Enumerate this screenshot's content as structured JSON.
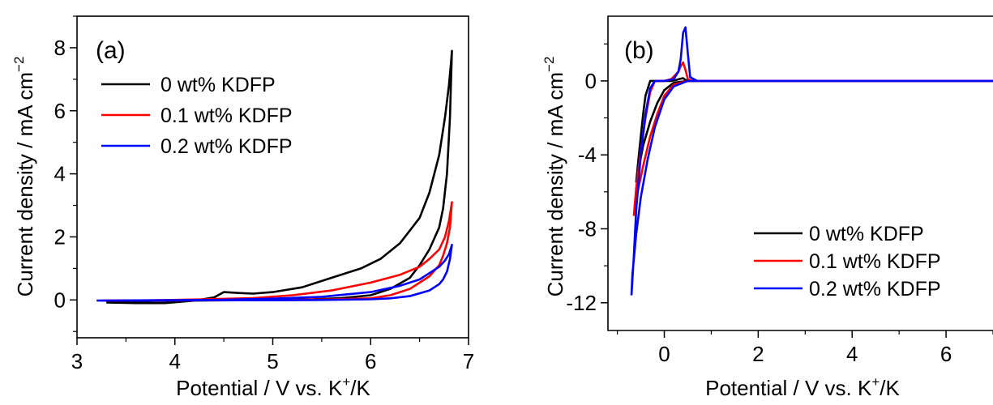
{
  "chart_data": [
    {
      "type": "line",
      "panel_label": "(a)",
      "xlabel": "Potential / V vs. K",
      "xlabel_sup": "+",
      "xlabel_tail": "/K",
      "ylabel": "Current density / mA cm",
      "ylabel_sup": "−2",
      "xlim": [
        3,
        7
      ],
      "ylim": [
        -1.2,
        9.0
      ],
      "xticks": [
        3,
        4,
        5,
        6,
        7
      ],
      "xtick_labels": [
        "3",
        "4",
        "5",
        "6",
        "7"
      ],
      "yticks": [
        0,
        2,
        4,
        6,
        8
      ],
      "ytick_labels": [
        "0",
        "2",
        "4",
        "6",
        "8"
      ],
      "legend_position": "upper-left",
      "series": [
        {
          "name": "0 wt% KDFP",
          "color": "#000000",
          "x": [
            3.3,
            3.6,
            3.9,
            4.2,
            4.4,
            4.5,
            4.65,
            4.8,
            5.0,
            5.3,
            5.6,
            5.9,
            6.1,
            6.3,
            6.5,
            6.6,
            6.7,
            6.76,
            6.8,
            6.82,
            6.83,
            6.81,
            6.78,
            6.74,
            6.7,
            6.6,
            6.5,
            6.4,
            6.2,
            6.0,
            5.7,
            5.4,
            5.0,
            4.6,
            4.2,
            3.8,
            3.4
          ],
          "y": [
            -0.08,
            -0.1,
            -0.1,
            -0.02,
            0.08,
            0.25,
            0.22,
            0.2,
            0.25,
            0.4,
            0.7,
            1.0,
            1.3,
            1.8,
            2.6,
            3.4,
            4.6,
            5.8,
            6.8,
            7.5,
            7.9,
            5.8,
            4.0,
            2.9,
            2.3,
            1.6,
            1.1,
            0.7,
            0.35,
            0.15,
            0.06,
            0.02,
            0.0,
            -0.01,
            -0.02,
            -0.03,
            -0.05
          ]
        },
        {
          "name": "0.1 wt% KDFP",
          "color": "#ff0000",
          "x": [
            3.25,
            3.8,
            4.3,
            4.8,
            5.2,
            5.6,
            6.0,
            6.3,
            6.5,
            6.6,
            6.7,
            6.76,
            6.8,
            6.82,
            6.83,
            6.81,
            6.78,
            6.74,
            6.7,
            6.6,
            6.4,
            6.2,
            6.0,
            5.6,
            5.2,
            4.8,
            4.3,
            3.8,
            3.25
          ],
          "y": [
            -0.02,
            -0.01,
            0.02,
            0.06,
            0.15,
            0.3,
            0.55,
            0.8,
            1.05,
            1.3,
            1.6,
            2.0,
            2.5,
            2.9,
            3.1,
            2.3,
            1.8,
            1.4,
            1.1,
            0.75,
            0.35,
            0.15,
            0.05,
            0.02,
            0.0,
            -0.01,
            -0.01,
            -0.02,
            -0.02
          ]
        },
        {
          "name": "0.2 wt% KDFP",
          "color": "#0000ff",
          "x": [
            3.2,
            3.8,
            4.4,
            5.0,
            5.5,
            6.0,
            6.3,
            6.5,
            6.6,
            6.7,
            6.76,
            6.8,
            6.82,
            6.83,
            6.81,
            6.78,
            6.74,
            6.7,
            6.6,
            6.4,
            6.2,
            6.0,
            5.5,
            5.0,
            4.4,
            3.8,
            3.2
          ],
          "y": [
            -0.02,
            -0.01,
            0.0,
            0.04,
            0.1,
            0.25,
            0.45,
            0.65,
            0.85,
            1.05,
            1.25,
            1.45,
            1.65,
            1.75,
            1.3,
            0.9,
            0.65,
            0.5,
            0.3,
            0.12,
            0.05,
            0.02,
            0.0,
            -0.01,
            -0.01,
            -0.02,
            -0.02
          ]
        }
      ]
    },
    {
      "type": "line",
      "panel_label": "(b)",
      "xlabel": "Potential / V vs. K",
      "xlabel_sup": "+",
      "xlabel_tail": "/K",
      "ylabel": "Current density / mA cm",
      "ylabel_sup": "−2",
      "xlim": [
        -1.2,
        7.0
      ],
      "ylim": [
        -13.5,
        3.5
      ],
      "xticks": [
        0,
        2,
        4,
        6
      ],
      "xtick_labels": [
        "0",
        "2",
        "4",
        "6"
      ],
      "yticks": [
        -12,
        -8,
        -4,
        0
      ],
      "ytick_labels": [
        "-12",
        "-8",
        "-4",
        "0"
      ],
      "legend_position": "lower-right",
      "series": [
        {
          "name": "0 wt% KDFP",
          "color": "#000000",
          "x": [
            -0.6,
            -0.55,
            -0.5,
            -0.45,
            -0.4,
            -0.3,
            -0.2,
            -0.1,
            0.0,
            0.15,
            0.25,
            0.35,
            0.4,
            0.45,
            0.6,
            1.5,
            3.0,
            5.0,
            7.0,
            5.0,
            3.0,
            1.5,
            0.5,
            0.2,
            0.0,
            -0.15,
            -0.3,
            -0.45,
            -0.55,
            -0.6
          ],
          "y": [
            -5.5,
            -4.2,
            -3.0,
            -1.8,
            -0.8,
            0.0,
            0.0,
            0.0,
            0.0,
            0.0,
            0.05,
            0.12,
            0.15,
            0.05,
            0.0,
            0.0,
            0.0,
            0.0,
            0.0,
            0.0,
            0.0,
            0.0,
            0.0,
            -0.1,
            -0.5,
            -1.2,
            -2.2,
            -3.5,
            -4.8,
            -5.5
          ]
        },
        {
          "name": "0.1 wt% KDFP",
          "color": "#ff0000",
          "x": [
            -0.65,
            -0.6,
            -0.5,
            -0.4,
            -0.3,
            -0.2,
            -0.1,
            0.0,
            0.15,
            0.3,
            0.35,
            0.4,
            0.45,
            0.5,
            0.6,
            1.5,
            3.0,
            5.0,
            7.0,
            5.0,
            3.0,
            1.5,
            0.5,
            0.2,
            0.0,
            -0.15,
            -0.3,
            -0.45,
            -0.6,
            -0.65
          ],
          "y": [
            -7.3,
            -5.8,
            -3.8,
            -2.0,
            -0.6,
            0.0,
            0.0,
            0.0,
            0.1,
            0.5,
            0.8,
            1.0,
            0.6,
            0.1,
            0.0,
            0.0,
            0.0,
            0.0,
            0.0,
            0.0,
            0.0,
            0.0,
            0.0,
            -0.2,
            -0.8,
            -1.8,
            -3.0,
            -4.6,
            -6.4,
            -7.3
          ]
        },
        {
          "name": "0.2 wt% KDFP",
          "color": "#0000ff",
          "x": [
            -0.7,
            -0.65,
            -0.6,
            -0.5,
            -0.4,
            -0.3,
            -0.2,
            0.0,
            0.2,
            0.3,
            0.35,
            0.4,
            0.45,
            0.5,
            0.55,
            0.7,
            1.5,
            3.0,
            5.0,
            7.0,
            5.0,
            3.0,
            1.5,
            0.5,
            0.2,
            0.0,
            -0.2,
            -0.35,
            -0.5,
            -0.6,
            -0.68,
            -0.7
          ],
          "y": [
            -11.6,
            -9.5,
            -7.0,
            -4.0,
            -1.8,
            -0.4,
            0.0,
            0.0,
            0.1,
            0.5,
            1.2,
            2.6,
            2.9,
            1.5,
            0.2,
            0.0,
            0.0,
            0.0,
            0.0,
            0.0,
            0.0,
            0.0,
            0.0,
            0.0,
            -0.3,
            -1.0,
            -2.5,
            -4.2,
            -6.3,
            -8.3,
            -10.5,
            -11.6
          ]
        }
      ]
    }
  ]
}
